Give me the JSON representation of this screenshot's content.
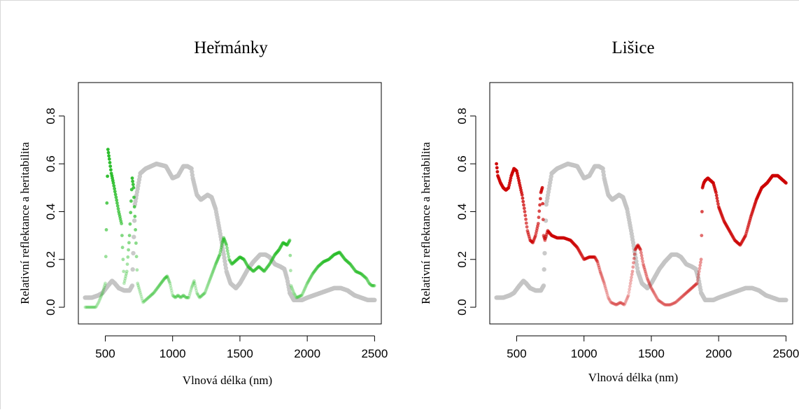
{
  "chart_data": [
    {
      "type": "scatter",
      "title": "Heřmánky",
      "xlabel": "Vlnová délka (nm)",
      "ylabel": "Relativní reflektance a heritabilita",
      "xlim": [
        300,
        2550
      ],
      "ylim": [
        -0.07,
        0.94
      ],
      "xticks": [
        500,
        1000,
        1500,
        2000,
        2500
      ],
      "yticks": [
        0.0,
        0.2,
        0.4,
        0.6,
        0.8
      ],
      "xtick_labels": [
        "500",
        "1000",
        "1500",
        "2000",
        "2500"
      ],
      "ytick_labels": [
        "0.0",
        "0.2",
        "0.4",
        "0.6",
        "0.8"
      ],
      "grid": false,
      "colors": {
        "reflectance": "#c4c4c4",
        "heritability": "#22bb22"
      },
      "series": [
        {
          "role": "reflectance",
          "x": [
            350,
            400,
            450,
            480,
            520,
            550,
            570,
            600,
            640,
            680,
            700,
            720,
            760,
            800,
            880,
            950,
            980,
            1000,
            1040,
            1080,
            1110,
            1140,
            1150,
            1180,
            1210,
            1260,
            1290,
            1320,
            1350,
            1380,
            1400,
            1430,
            1470,
            1500,
            1560,
            1600,
            1650,
            1690,
            1720,
            1760,
            1800,
            1830,
            1850,
            1870,
            1900,
            1930,
            1960,
            2000,
            2050,
            2100,
            2150,
            2200,
            2250,
            2300,
            2350,
            2400,
            2450,
            2500
          ],
          "y": [
            0.04,
            0.04,
            0.05,
            0.06,
            0.09,
            0.11,
            0.1,
            0.08,
            0.07,
            0.07,
            0.09,
            0.43,
            0.56,
            0.58,
            0.6,
            0.59,
            0.56,
            0.54,
            0.55,
            0.59,
            0.59,
            0.58,
            0.54,
            0.47,
            0.45,
            0.47,
            0.46,
            0.41,
            0.32,
            0.22,
            0.15,
            0.1,
            0.08,
            0.1,
            0.16,
            0.19,
            0.22,
            0.22,
            0.21,
            0.18,
            0.17,
            0.16,
            0.12,
            0.06,
            0.03,
            0.03,
            0.03,
            0.04,
            0.05,
            0.06,
            0.07,
            0.08,
            0.08,
            0.07,
            0.05,
            0.04,
            0.03,
            0.03
          ]
        },
        {
          "role": "heritability",
          "x": [
            350,
            400,
            430,
            450,
            480,
            500,
            520,
            530,
            545,
            560,
            580,
            600,
            620,
            640,
            660,
            680,
            700,
            710,
            720,
            740,
            780,
            820,
            860,
            900,
            940,
            960,
            980,
            1000,
            1020,
            1040,
            1060,
            1080,
            1100,
            1120,
            1140,
            1160,
            1180,
            1200,
            1240,
            1280,
            1320,
            1350,
            1370,
            1380,
            1400,
            1420,
            1440,
            1480,
            1500,
            1530,
            1560,
            1600,
            1640,
            1680,
            1720,
            1760,
            1790,
            1820,
            1850,
            1870,
            1880,
            1900,
            1920,
            1960,
            2000,
            2040,
            2080,
            2120,
            2160,
            2200,
            2240,
            2280,
            2320,
            2360,
            2400,
            2440,
            2460,
            2480,
            2500
          ],
          "y": [
            0.0,
            0.0,
            0.0,
            0.02,
            0.06,
            0.1,
            0.66,
            0.62,
            0.56,
            0.52,
            0.46,
            0.4,
            0.35,
            0.1,
            0.15,
            0.3,
            0.54,
            0.5,
            0.38,
            0.1,
            0.02,
            0.04,
            0.06,
            0.09,
            0.12,
            0.13,
            0.1,
            0.05,
            0.04,
            0.05,
            0.04,
            0.05,
            0.04,
            0.04,
            0.08,
            0.11,
            0.06,
            0.04,
            0.06,
            0.12,
            0.18,
            0.22,
            0.27,
            0.29,
            0.26,
            0.2,
            0.18,
            0.2,
            0.21,
            0.2,
            0.17,
            0.15,
            0.17,
            0.15,
            0.18,
            0.22,
            0.24,
            0.27,
            0.26,
            0.28,
            0.09,
            0.06,
            0.04,
            0.05,
            0.1,
            0.14,
            0.17,
            0.19,
            0.2,
            0.22,
            0.23,
            0.2,
            0.18,
            0.15,
            0.14,
            0.12,
            0.1,
            0.09,
            0.09
          ]
        }
      ]
    },
    {
      "type": "scatter",
      "title": "Lišice",
      "xlabel": "Vlnová délka (nm)",
      "ylabel": "Relativní reflektance a heritabilita",
      "xlim": [
        300,
        2550
      ],
      "ylim": [
        -0.07,
        0.94
      ],
      "xticks": [
        500,
        1000,
        1500,
        2000,
        2500
      ],
      "yticks": [
        0.0,
        0.2,
        0.4,
        0.6,
        0.8
      ],
      "xtick_labels": [
        "500",
        "1000",
        "1500",
        "2000",
        "2500"
      ],
      "ytick_labels": [
        "0.0",
        "0.2",
        "0.4",
        "0.6",
        "0.8"
      ],
      "grid": false,
      "colors": {
        "reflectance": "#c4c4c4",
        "heritability": "#cc0000"
      },
      "series": [
        {
          "role": "reflectance",
          "x": [
            350,
            400,
            450,
            480,
            520,
            550,
            570,
            600,
            640,
            680,
            700,
            720,
            760,
            800,
            880,
            950,
            980,
            1000,
            1040,
            1080,
            1110,
            1140,
            1150,
            1180,
            1210,
            1260,
            1290,
            1320,
            1350,
            1380,
            1400,
            1430,
            1470,
            1500,
            1560,
            1600,
            1650,
            1690,
            1720,
            1760,
            1800,
            1830,
            1850,
            1870,
            1900,
            1930,
            1960,
            2000,
            2050,
            2100,
            2150,
            2200,
            2250,
            2300,
            2350,
            2400,
            2450,
            2500
          ],
          "y": [
            0.04,
            0.04,
            0.05,
            0.06,
            0.09,
            0.11,
            0.1,
            0.08,
            0.07,
            0.07,
            0.09,
            0.43,
            0.56,
            0.58,
            0.6,
            0.59,
            0.56,
            0.54,
            0.55,
            0.59,
            0.59,
            0.58,
            0.54,
            0.47,
            0.45,
            0.47,
            0.46,
            0.41,
            0.32,
            0.22,
            0.15,
            0.1,
            0.08,
            0.1,
            0.16,
            0.19,
            0.22,
            0.22,
            0.21,
            0.18,
            0.17,
            0.16,
            0.12,
            0.06,
            0.03,
            0.03,
            0.03,
            0.04,
            0.05,
            0.06,
            0.07,
            0.08,
            0.08,
            0.07,
            0.05,
            0.04,
            0.03,
            0.03
          ]
        },
        {
          "role": "heritability",
          "x": [
            350,
            360,
            380,
            400,
            420,
            440,
            460,
            480,
            500,
            520,
            540,
            560,
            580,
            600,
            620,
            640,
            660,
            680,
            690,
            700,
            710,
            730,
            760,
            800,
            850,
            900,
            950,
            980,
            1000,
            1040,
            1080,
            1100,
            1120,
            1150,
            1180,
            1200,
            1240,
            1270,
            1300,
            1330,
            1360,
            1380,
            1400,
            1420,
            1440,
            1470,
            1500,
            1550,
            1600,
            1640,
            1680,
            1720,
            1760,
            1800,
            1840,
            1870,
            1880,
            1890,
            1900,
            1920,
            1940,
            1960,
            1980,
            2000,
            2040,
            2080,
            2120,
            2160,
            2200,
            2240,
            2280,
            2320,
            2360,
            2400,
            2440,
            2460,
            2480,
            2500
          ],
          "y": [
            0.6,
            0.55,
            0.52,
            0.5,
            0.49,
            0.5,
            0.55,
            0.58,
            0.57,
            0.52,
            0.47,
            0.4,
            0.32,
            0.28,
            0.27,
            0.3,
            0.35,
            0.48,
            0.5,
            0.3,
            0.28,
            0.32,
            0.3,
            0.29,
            0.29,
            0.28,
            0.25,
            0.22,
            0.2,
            0.21,
            0.21,
            0.19,
            0.15,
            0.1,
            0.04,
            0.02,
            0.01,
            0.02,
            0.01,
            0.05,
            0.15,
            0.24,
            0.26,
            0.24,
            0.18,
            0.12,
            0.08,
            0.03,
            0.01,
            0.01,
            0.02,
            0.04,
            0.06,
            0.08,
            0.1,
            0.2,
            0.5,
            0.52,
            0.53,
            0.54,
            0.53,
            0.52,
            0.48,
            0.42,
            0.36,
            0.32,
            0.28,
            0.26,
            0.3,
            0.38,
            0.45,
            0.5,
            0.52,
            0.55,
            0.55,
            0.54,
            0.53,
            0.52
          ]
        }
      ]
    }
  ]
}
